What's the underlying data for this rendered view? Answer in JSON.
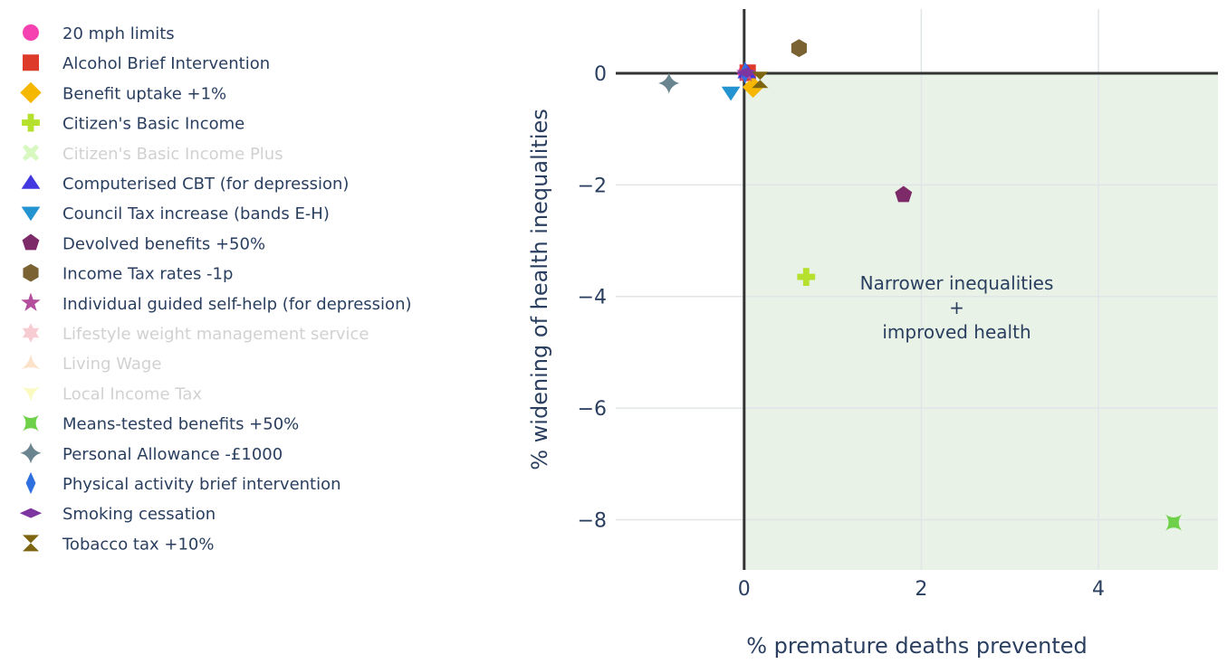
{
  "chart_data": {
    "type": "scatter",
    "title": "",
    "xlabel": "% premature deaths prevented",
    "ylabel": "% widening of health inequalities",
    "xlim": [
      -1.45,
      5.35
    ],
    "ylim": [
      -8.9,
      1.15
    ],
    "xticks": [
      0,
      2,
      4
    ],
    "yticks": [
      0,
      -2,
      -4,
      -6,
      -8
    ],
    "grid": true,
    "legend_position": "left",
    "shaded_region": {
      "x": [
        0,
        5.35
      ],
      "y": [
        -8.9,
        0
      ],
      "color": "#e8f2e6"
    },
    "annotations": [
      {
        "lines": [
          "Narrower inequalities",
          "+",
          "improved health"
        ],
        "x": 2.4,
        "y": -4.2
      }
    ],
    "series": [
      {
        "name": "20 mph limits",
        "symbol": "circle",
        "color": "#f542b0",
        "visible": true,
        "x": [
          0.02
        ],
        "y": [
          0.0
        ]
      },
      {
        "name": "Alcohol Brief Intervention",
        "symbol": "square",
        "color": "#dd3a2a",
        "visible": true,
        "x": [
          0.04
        ],
        "y": [
          0.01
        ]
      },
      {
        "name": "Benefit uptake +1%",
        "symbol": "diamond",
        "color": "#f5b700",
        "visible": true,
        "x": [
          0.1
        ],
        "y": [
          -0.25
        ]
      },
      {
        "name": "Citizen's Basic Income",
        "symbol": "cross",
        "color": "#b5e02d",
        "visible": true,
        "x": [
          0.7
        ],
        "y": [
          -3.65
        ]
      },
      {
        "name": "Citizen's Basic Income Plus",
        "symbol": "x",
        "color": "#a8f075",
        "visible": false,
        "x": [],
        "y": []
      },
      {
        "name": "Computerised CBT (for depression)",
        "symbol": "triangle-up",
        "color": "#4338e0",
        "visible": true,
        "x": [
          0.03
        ],
        "y": [
          0.02
        ]
      },
      {
        "name": "Council Tax increase (bands E-H)",
        "symbol": "triangle-down",
        "color": "#2394d0",
        "visible": true,
        "x": [
          -0.15
        ],
        "y": [
          -0.35
        ]
      },
      {
        "name": "Devolved benefits +50%",
        "symbol": "pentagon",
        "color": "#7d2a68",
        "visible": true,
        "x": [
          1.8
        ],
        "y": [
          -2.18
        ]
      },
      {
        "name": "Income Tax rates -1p",
        "symbol": "hexagon",
        "color": "#7a6232",
        "visible": true,
        "x": [
          0.62
        ],
        "y": [
          0.45
        ]
      },
      {
        "name": "Individual guided self-help (for depression)",
        "symbol": "star",
        "color": "#b34f9c",
        "visible": true,
        "x": [
          0.02
        ],
        "y": [
          0.0
        ]
      },
      {
        "name": "Lifestyle weight management service",
        "symbol": "hexagram",
        "color": "#f090a0",
        "visible": false,
        "x": [],
        "y": []
      },
      {
        "name": "Living Wage",
        "symbol": "star-triangle-up",
        "color": "#f9c08a",
        "visible": false,
        "x": [],
        "y": []
      },
      {
        "name": "Local Income Tax",
        "symbol": "star-triangle-down",
        "color": "#f7f47a",
        "visible": false,
        "x": [],
        "y": []
      },
      {
        "name": "Means-tested benefits +50%",
        "symbol": "star-square",
        "color": "#6fd14a",
        "visible": true,
        "x": [
          4.85
        ],
        "y": [
          -8.05
        ]
      },
      {
        "name": "Personal Allowance -£1000",
        "symbol": "star-diamond",
        "color": "#6a8590",
        "visible": true,
        "x": [
          -0.85
        ],
        "y": [
          -0.18
        ]
      },
      {
        "name": "Physical activity brief intervention",
        "symbol": "diamond-tall",
        "color": "#2f6fe0",
        "visible": true,
        "x": [
          0.01
        ],
        "y": [
          0.01
        ]
      },
      {
        "name": "Smoking cessation",
        "symbol": "diamond-wide",
        "color": "#7d35a0",
        "visible": true,
        "x": [
          0.03
        ],
        "y": [
          0.01
        ]
      },
      {
        "name": "Tobacco tax +10%",
        "symbol": "hourglass",
        "color": "#7d6512",
        "visible": true,
        "x": [
          0.18
        ],
        "y": [
          -0.12
        ]
      }
    ]
  }
}
